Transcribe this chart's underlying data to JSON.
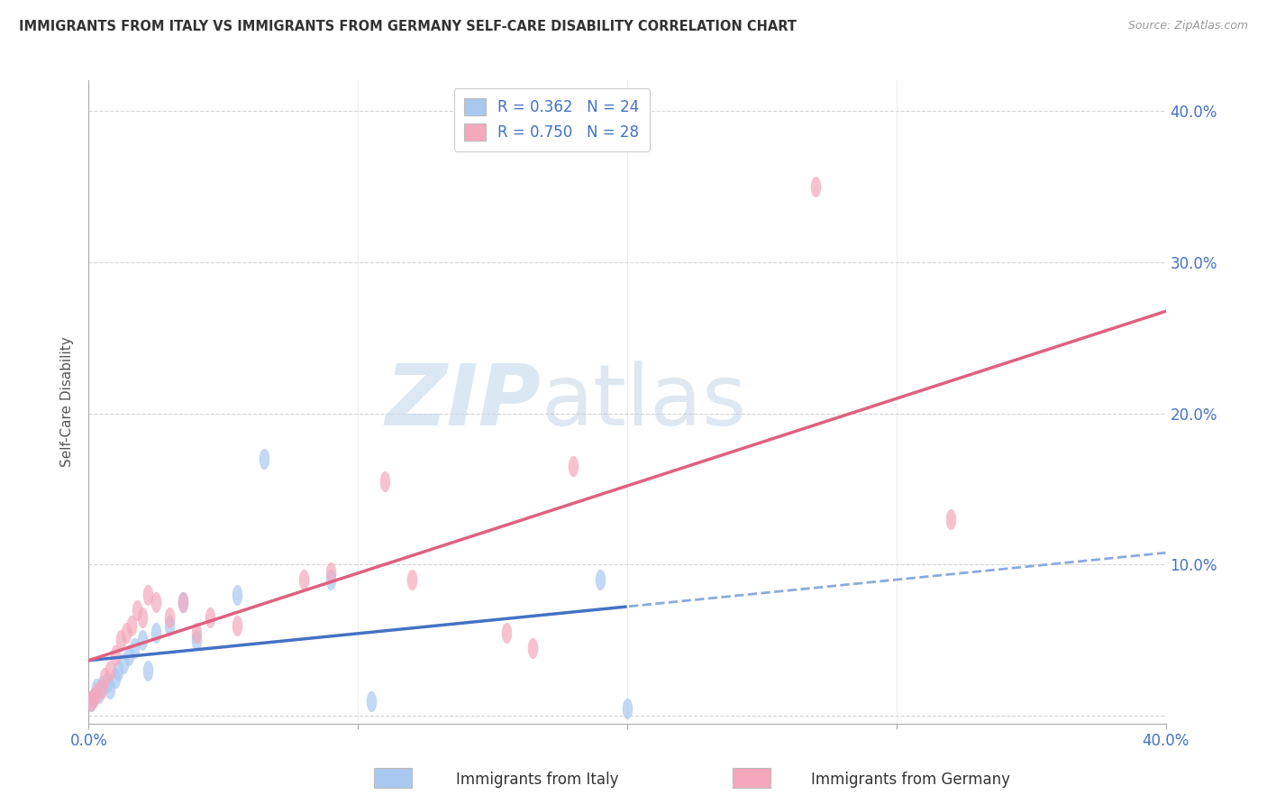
{
  "title": "IMMIGRANTS FROM ITALY VS IMMIGRANTS FROM GERMANY SELF-CARE DISABILITY CORRELATION CHART",
  "source": "Source: ZipAtlas.com",
  "ylabel": "Self-Care Disability",
  "legend_italy": "Immigrants from Italy",
  "legend_germany": "Immigrants from Germany",
  "legend_r_italy": "R = 0.362",
  "legend_n_italy": "N = 24",
  "legend_r_germany": "R = 0.750",
  "legend_n_germany": "N = 28",
  "xmin": 0.0,
  "xmax": 0.4,
  "ymin": -0.005,
  "ymax": 0.42,
  "yticks": [
    0.0,
    0.1,
    0.2,
    0.3,
    0.4
  ],
  "ytick_labels": [
    "",
    "10.0%",
    "20.0%",
    "30.0%",
    "40.0%"
  ],
  "xticks": [
    0.0,
    0.1,
    0.2,
    0.3,
    0.4
  ],
  "xtick_labels": [
    "0.0%",
    "",
    "",
    "",
    "40.0%"
  ],
  "color_italy": "#A8C8F0",
  "color_germany": "#F5A8BC",
  "trendline_italy_solid_color": "#4472C4",
  "trendline_italy_dash_color": "#8AABDB",
  "trendline_germany_color": "#E06080",
  "italy_x": [
    0.001,
    0.002,
    0.003,
    0.004,
    0.005,
    0.007,
    0.008,
    0.01,
    0.011,
    0.013,
    0.015,
    0.017,
    0.02,
    0.022,
    0.025,
    0.03,
    0.035,
    0.04,
    0.055,
    0.065,
    0.09,
    0.105,
    0.19,
    0.2
  ],
  "italy_y": [
    0.01,
    0.012,
    0.018,
    0.015,
    0.02,
    0.022,
    0.018,
    0.025,
    0.03,
    0.035,
    0.04,
    0.045,
    0.05,
    0.03,
    0.055,
    0.06,
    0.075,
    0.05,
    0.08,
    0.17,
    0.09,
    0.01,
    0.09,
    0.005
  ],
  "germany_x": [
    0.001,
    0.002,
    0.003,
    0.005,
    0.006,
    0.008,
    0.01,
    0.012,
    0.014,
    0.016,
    0.018,
    0.02,
    0.022,
    0.025,
    0.03,
    0.035,
    0.04,
    0.045,
    0.055,
    0.08,
    0.09,
    0.11,
    0.12,
    0.155,
    0.165,
    0.18,
    0.27,
    0.32
  ],
  "germany_y": [
    0.01,
    0.012,
    0.015,
    0.018,
    0.025,
    0.03,
    0.04,
    0.05,
    0.055,
    0.06,
    0.07,
    0.065,
    0.08,
    0.075,
    0.065,
    0.075,
    0.055,
    0.065,
    0.06,
    0.09,
    0.095,
    0.155,
    0.09,
    0.055,
    0.045,
    0.165,
    0.35,
    0.13
  ],
  "watermark_zip": "ZIP",
  "watermark_atlas": "atlas",
  "background_color": "#FFFFFF",
  "grid_color": "#CCCCCC"
}
